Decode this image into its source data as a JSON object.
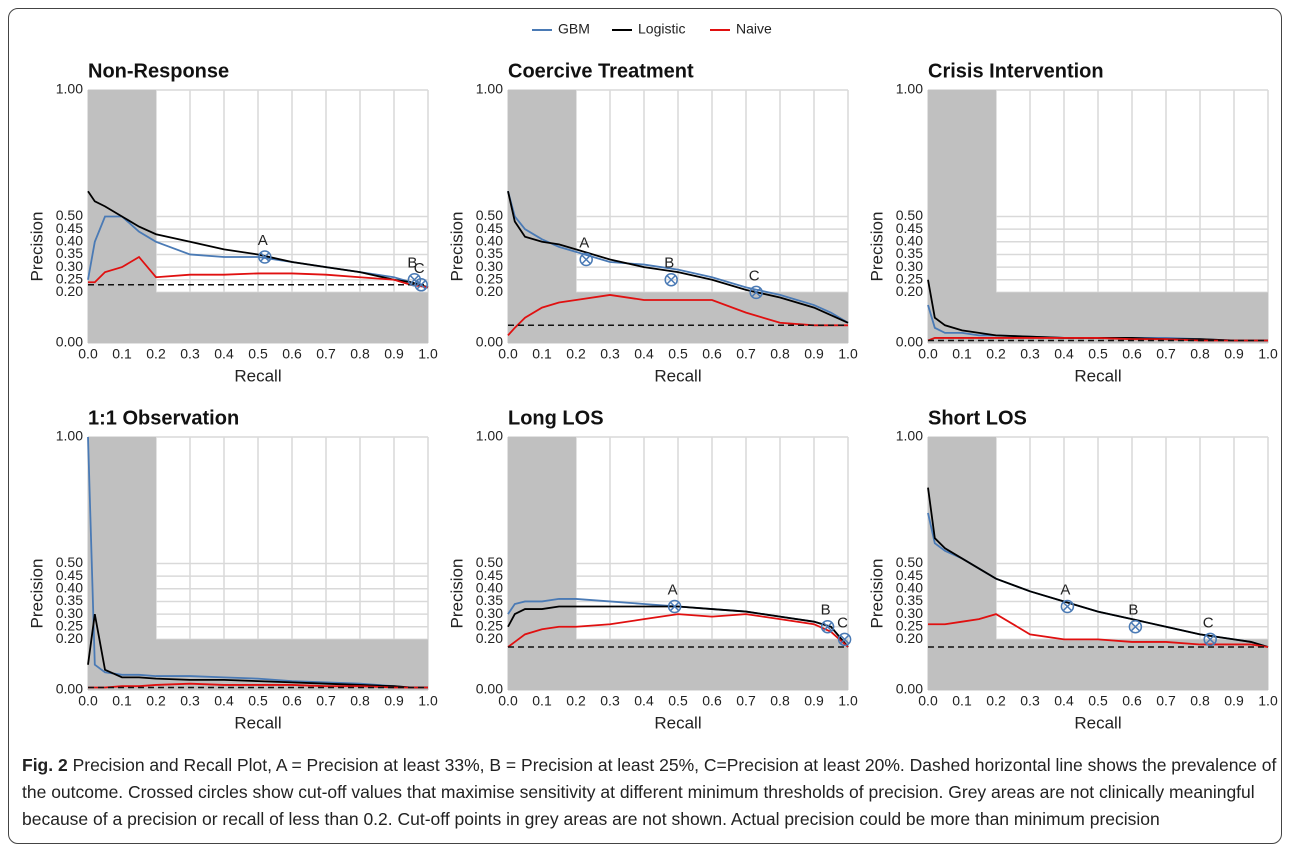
{
  "chart_data": [
    {
      "type": "line",
      "title": "Non-Response",
      "xlabel": "Recall",
      "ylabel": "Precision",
      "x": [
        0,
        0.02,
        0.05,
        0.1,
        0.15,
        0.2,
        0.3,
        0.4,
        0.5,
        0.6,
        0.7,
        0.8,
        0.9,
        0.95,
        1.0
      ],
      "series": [
        {
          "name": "GBM",
          "color": "#4a7ab5",
          "values": [
            0.25,
            0.4,
            0.5,
            0.5,
            0.44,
            0.4,
            0.35,
            0.34,
            0.34,
            0.32,
            0.3,
            0.28,
            0.26,
            0.24,
            0.22
          ]
        },
        {
          "name": "Logistic",
          "color": "#000000",
          "values": [
            0.6,
            0.56,
            0.54,
            0.5,
            0.46,
            0.43,
            0.4,
            0.37,
            0.35,
            0.32,
            0.3,
            0.28,
            0.25,
            0.24,
            0.22
          ]
        },
        {
          "name": "Naive",
          "color": "#e01010",
          "values": [
            0.24,
            0.24,
            0.28,
            0.3,
            0.34,
            0.26,
            0.27,
            0.27,
            0.275,
            0.275,
            0.27,
            0.26,
            0.25,
            0.23,
            0.22
          ]
        }
      ],
      "prevalence": 0.23,
      "shaded_below": 0.2,
      "cutoffs": [
        {
          "label": "A",
          "x": 0.52,
          "y": 0.34
        },
        {
          "label": "B",
          "x": 0.96,
          "y": 0.25
        },
        {
          "label": "C",
          "x": 0.98,
          "y": 0.23
        }
      ],
      "xlim": [
        0,
        1
      ],
      "ylim": [
        0,
        1
      ],
      "xticks": [
        {
          "value": 0,
          "label": "0.0"
        },
        0.1,
        0.2,
        0.3,
        0.4,
        0.5,
        0.6,
        0.7,
        0.8,
        0.9,
        {
          "value": 1,
          "label": "1.0"
        }
      ],
      "yticks": [
        {
          "value": 0,
          "label": "0.00"
        },
        {
          "value": 0.2,
          "label": "0.20"
        },
        {
          "value": 0.25,
          "label": "0.25"
        },
        {
          "value": 0.3,
          "label": "0.30"
        },
        {
          "value": 0.35,
          "label": "0.35"
        },
        {
          "value": 0.4,
          "label": "0.40"
        },
        {
          "value": 0.45,
          "label": "0.45"
        },
        {
          "value": 0.5,
          "label": "0.50"
        },
        {
          "value": 1,
          "label": "1.00"
        }
      ],
      "grid": true
    },
    {
      "type": "line",
      "title": "Coercive Treatment",
      "xlabel": "Recall",
      "ylabel": "Precision",
      "x": [
        0,
        0.02,
        0.05,
        0.1,
        0.15,
        0.2,
        0.3,
        0.4,
        0.5,
        0.6,
        0.7,
        0.8,
        0.9,
        0.95,
        1.0
      ],
      "series": [
        {
          "name": "GBM",
          "color": "#4a7ab5",
          "values": [
            0.6,
            0.5,
            0.45,
            0.41,
            0.38,
            0.36,
            0.32,
            0.31,
            0.29,
            0.26,
            0.22,
            0.19,
            0.15,
            0.12,
            0.08
          ]
        },
        {
          "name": "Logistic",
          "color": "#000000",
          "values": [
            0.6,
            0.48,
            0.42,
            0.4,
            0.39,
            0.37,
            0.33,
            0.3,
            0.28,
            0.25,
            0.21,
            0.18,
            0.14,
            0.11,
            0.08
          ]
        },
        {
          "name": "Naive",
          "color": "#e01010",
          "values": [
            0.03,
            0.06,
            0.1,
            0.14,
            0.16,
            0.17,
            0.19,
            0.17,
            0.17,
            0.17,
            0.12,
            0.08,
            0.07,
            0.07,
            0.07
          ]
        }
      ],
      "prevalence": 0.07,
      "shaded_below": 0.2,
      "cutoffs": [
        {
          "label": "A",
          "x": 0.23,
          "y": 0.33
        },
        {
          "label": "B",
          "x": 0.48,
          "y": 0.25
        },
        {
          "label": "C",
          "x": 0.73,
          "y": 0.2
        }
      ],
      "xlim": [
        0,
        1
      ],
      "ylim": [
        0,
        1
      ],
      "xticks": [
        {
          "value": 0,
          "label": "0.0"
        },
        0.1,
        0.2,
        0.3,
        0.4,
        0.5,
        0.6,
        0.7,
        0.8,
        0.9,
        {
          "value": 1,
          "label": "1.0"
        }
      ],
      "yticks": [
        {
          "value": 0,
          "label": "0.00"
        },
        {
          "value": 0.2,
          "label": "0.20"
        },
        {
          "value": 0.25,
          "label": "0.25"
        },
        {
          "value": 0.3,
          "label": "0.30"
        },
        {
          "value": 0.35,
          "label": "0.35"
        },
        {
          "value": 0.4,
          "label": "0.40"
        },
        {
          "value": 0.45,
          "label": "0.45"
        },
        {
          "value": 0.5,
          "label": "0.50"
        },
        {
          "value": 1,
          "label": "1.00"
        }
      ],
      "grid": true
    },
    {
      "type": "line",
      "title": "Crisis Intervention",
      "xlabel": "Recall",
      "ylabel": "Precision",
      "x": [
        0,
        0.02,
        0.05,
        0.1,
        0.15,
        0.2,
        0.3,
        0.4,
        0.5,
        0.6,
        0.7,
        0.8,
        0.9,
        0.95,
        1.0
      ],
      "series": [
        {
          "name": "GBM",
          "color": "#4a7ab5",
          "values": [
            0.15,
            0.06,
            0.04,
            0.04,
            0.03,
            0.03,
            0.025,
            0.02,
            0.02,
            0.02,
            0.02,
            0.015,
            0.01,
            0.01,
            0.01
          ]
        },
        {
          "name": "Logistic",
          "color": "#000000",
          "values": [
            0.25,
            0.1,
            0.07,
            0.05,
            0.04,
            0.03,
            0.025,
            0.02,
            0.02,
            0.02,
            0.015,
            0.015,
            0.01,
            0.01,
            0.01
          ]
        },
        {
          "name": "Naive",
          "color": "#e01010",
          "values": [
            0.01,
            0.02,
            0.02,
            0.02,
            0.02,
            0.02,
            0.02,
            0.02,
            0.02,
            0.015,
            0.015,
            0.01,
            0.01,
            0.01,
            0.01
          ]
        }
      ],
      "prevalence": 0.01,
      "shaded_below": 0.2,
      "cutoffs": [],
      "xlim": [
        0,
        1
      ],
      "ylim": [
        0,
        1
      ],
      "xticks": [
        {
          "value": 0,
          "label": "0.0"
        },
        0.1,
        0.2,
        0.3,
        0.4,
        0.5,
        0.6,
        0.7,
        0.8,
        0.9,
        {
          "value": 1,
          "label": "1.0"
        }
      ],
      "yticks": [
        {
          "value": 0,
          "label": "0.00"
        },
        {
          "value": 0.2,
          "label": "0.20"
        },
        {
          "value": 0.25,
          "label": "0.25"
        },
        {
          "value": 0.3,
          "label": "0.30"
        },
        {
          "value": 0.35,
          "label": "0.35"
        },
        {
          "value": 0.4,
          "label": "0.40"
        },
        {
          "value": 0.45,
          "label": "0.45"
        },
        {
          "value": 0.5,
          "label": "0.50"
        },
        {
          "value": 1,
          "label": "1.00"
        }
      ],
      "grid": true
    },
    {
      "type": "line",
      "title": "1:1 Observation",
      "xlabel": "Recall",
      "ylabel": "Precision",
      "x": [
        0,
        0.02,
        0.05,
        0.1,
        0.15,
        0.2,
        0.3,
        0.4,
        0.5,
        0.6,
        0.7,
        0.8,
        0.9,
        0.95,
        1.0
      ],
      "series": [
        {
          "name": "GBM",
          "color": "#4a7ab5",
          "values": [
            1.0,
            0.1,
            0.07,
            0.06,
            0.06,
            0.055,
            0.055,
            0.05,
            0.045,
            0.035,
            0.03,
            0.025,
            0.015,
            0.01,
            0.01
          ]
        },
        {
          "name": "Logistic",
          "color": "#000000",
          "values": [
            0.1,
            0.3,
            0.08,
            0.05,
            0.05,
            0.045,
            0.04,
            0.04,
            0.035,
            0.03,
            0.025,
            0.02,
            0.015,
            0.01,
            0.01
          ]
        },
        {
          "name": "Naive",
          "color": "#e01010",
          "values": [
            0.01,
            0.01,
            0.01,
            0.015,
            0.015,
            0.02,
            0.025,
            0.02,
            0.02,
            0.02,
            0.015,
            0.015,
            0.01,
            0.01,
            0.01
          ]
        }
      ],
      "prevalence": 0.01,
      "shaded_below": 0.2,
      "cutoffs": [],
      "xlim": [
        0,
        1
      ],
      "ylim": [
        0,
        1
      ],
      "xticks": [
        {
          "value": 0,
          "label": "0.0"
        },
        0.1,
        0.2,
        0.3,
        0.4,
        0.5,
        0.6,
        0.7,
        0.8,
        0.9,
        {
          "value": 1,
          "label": "1.0"
        }
      ],
      "yticks": [
        {
          "value": 0,
          "label": "0.00"
        },
        {
          "value": 0.2,
          "label": "0.20"
        },
        {
          "value": 0.25,
          "label": "0.25"
        },
        {
          "value": 0.3,
          "label": "0.30"
        },
        {
          "value": 0.35,
          "label": "0.35"
        },
        {
          "value": 0.4,
          "label": "0.40"
        },
        {
          "value": 0.45,
          "label": "0.45"
        },
        {
          "value": 0.5,
          "label": "0.50"
        },
        {
          "value": 1,
          "label": "1.00"
        }
      ],
      "grid": true
    },
    {
      "type": "line",
      "title": "Long LOS",
      "xlabel": "Recall",
      "ylabel": "Precision",
      "x": [
        0,
        0.02,
        0.05,
        0.1,
        0.15,
        0.2,
        0.3,
        0.4,
        0.5,
        0.6,
        0.7,
        0.8,
        0.9,
        0.95,
        1.0
      ],
      "series": [
        {
          "name": "GBM",
          "color": "#4a7ab5",
          "values": [
            0.3,
            0.34,
            0.35,
            0.35,
            0.36,
            0.36,
            0.35,
            0.34,
            0.33,
            0.32,
            0.31,
            0.29,
            0.27,
            0.25,
            0.17
          ]
        },
        {
          "name": "Logistic",
          "color": "#000000",
          "values": [
            0.25,
            0.3,
            0.32,
            0.32,
            0.33,
            0.33,
            0.33,
            0.33,
            0.33,
            0.32,
            0.31,
            0.29,
            0.27,
            0.25,
            0.17
          ]
        },
        {
          "name": "Naive",
          "color": "#e01010",
          "values": [
            0.17,
            0.19,
            0.22,
            0.24,
            0.25,
            0.25,
            0.26,
            0.28,
            0.3,
            0.29,
            0.3,
            0.28,
            0.26,
            0.23,
            0.17
          ]
        }
      ],
      "prevalence": 0.17,
      "shaded_below": 0.2,
      "cutoffs": [
        {
          "label": "A",
          "x": 0.49,
          "y": 0.33
        },
        {
          "label": "B",
          "x": 0.94,
          "y": 0.25
        },
        {
          "label": "C",
          "x": 0.99,
          "y": 0.2
        }
      ],
      "xlim": [
        0,
        1
      ],
      "ylim": [
        0,
        1
      ],
      "xticks": [
        {
          "value": 0,
          "label": "0.0"
        },
        0.1,
        0.2,
        0.3,
        0.4,
        0.5,
        0.6,
        0.7,
        0.8,
        0.9,
        {
          "value": 1,
          "label": "1.0"
        }
      ],
      "yticks": [
        {
          "value": 0,
          "label": "0.00"
        },
        {
          "value": 0.2,
          "label": "0.20"
        },
        {
          "value": 0.25,
          "label": "0.25"
        },
        {
          "value": 0.3,
          "label": "0.30"
        },
        {
          "value": 0.35,
          "label": "0.35"
        },
        {
          "value": 0.4,
          "label": "0.40"
        },
        {
          "value": 0.45,
          "label": "0.45"
        },
        {
          "value": 0.5,
          "label": "0.50"
        },
        {
          "value": 1,
          "label": "1.00"
        }
      ],
      "grid": true
    },
    {
      "type": "line",
      "title": "Short LOS",
      "xlabel": "Recall",
      "ylabel": "Precision",
      "x": [
        0,
        0.02,
        0.05,
        0.1,
        0.15,
        0.2,
        0.3,
        0.4,
        0.5,
        0.6,
        0.7,
        0.8,
        0.9,
        0.95,
        1.0
      ],
      "series": [
        {
          "name": "GBM",
          "color": "#4a7ab5",
          "values": [
            0.7,
            0.58,
            0.55,
            0.52,
            0.48,
            0.44,
            0.39,
            0.35,
            0.31,
            0.28,
            0.25,
            0.22,
            0.2,
            0.19,
            0.17
          ]
        },
        {
          "name": "Logistic",
          "color": "#000000",
          "values": [
            0.8,
            0.6,
            0.56,
            0.52,
            0.48,
            0.44,
            0.39,
            0.35,
            0.31,
            0.28,
            0.25,
            0.22,
            0.2,
            0.19,
            0.17
          ]
        },
        {
          "name": "Naive",
          "color": "#e01010",
          "values": [
            0.26,
            0.26,
            0.26,
            0.27,
            0.28,
            0.3,
            0.22,
            0.2,
            0.2,
            0.19,
            0.19,
            0.18,
            0.18,
            0.18,
            0.17
          ]
        }
      ],
      "prevalence": 0.17,
      "shaded_below": 0.2,
      "cutoffs": [
        {
          "label": "A",
          "x": 0.41,
          "y": 0.33
        },
        {
          "label": "B",
          "x": 0.61,
          "y": 0.25
        },
        {
          "label": "C",
          "x": 0.83,
          "y": 0.2
        }
      ],
      "xlim": [
        0,
        1
      ],
      "ylim": [
        0,
        1
      ],
      "xticks": [
        {
          "value": 0,
          "label": "0.0"
        },
        0.1,
        0.2,
        0.3,
        0.4,
        0.5,
        0.6,
        0.7,
        0.8,
        0.9,
        {
          "value": 1,
          "label": "1.0"
        }
      ],
      "yticks": [
        {
          "value": 0,
          "label": "0.00"
        },
        {
          "value": 0.2,
          "label": "0.20"
        },
        {
          "value": 0.25,
          "label": "0.25"
        },
        {
          "value": 0.3,
          "label": "0.30"
        },
        {
          "value": 0.35,
          "label": "0.35"
        },
        {
          "value": 0.4,
          "label": "0.40"
        },
        {
          "value": 0.45,
          "label": "0.45"
        },
        {
          "value": 0.5,
          "label": "0.50"
        },
        {
          "value": 1,
          "label": "1.00"
        }
      ],
      "grid": true
    }
  ],
  "caption": {
    "label": "Fig. 2",
    "text": "Precision and Recall Plot, A = Precision at least 33%, B = Precision at least 25%, C=Precision at least 20%. Dashed horizontal line shows the prevalence of the outcome. Crossed circles show cut-off values that maximise sensitivity at different minimum thresholds of precision. Grey areas are not clinically meaningful because of a precision or recall of less than 0.2. Cut-off points in grey areas are not shown. Actual precision could be more than minimum precision"
  }
}
